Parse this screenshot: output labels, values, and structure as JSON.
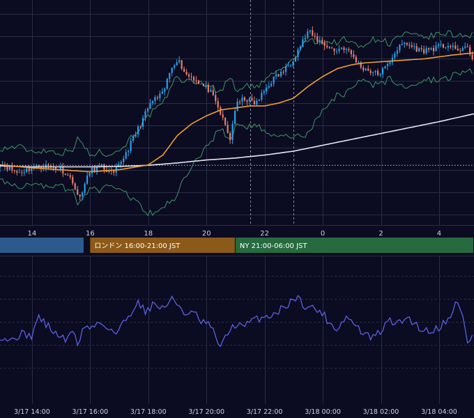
{
  "colors": {
    "background": "#0b0b22",
    "grid": "#2a2d45",
    "candle_up": "#2aa3e8",
    "candle_down": "#e8806a",
    "bollinger": "#3a9a62",
    "ma_fast": "#f0a030",
    "ma_slow": "#e8e8f0",
    "rsi": "#5a62e0",
    "tokyo": "#2c5a8c",
    "london": "#8c5a18",
    "ny": "#276a40"
  },
  "sessions": [
    {
      "label": "",
      "color": "#2c5a8c",
      "from_hour": 12.5,
      "to_hour": 15.8
    },
    {
      "label": "ロンドン 16:00-21:00 JST",
      "color": "#8c5a18",
      "from_hour": 16.0,
      "to_hour": 21.0
    },
    {
      "label": "NY 21:00-06:00 JST",
      "color": "#276a40",
      "from_hour": 21.0,
      "to_hour": 30.0
    }
  ],
  "chart_data": [
    {
      "type": "candlestick",
      "title": "",
      "x_range_hours": [
        12.9,
        29.2
      ],
      "x_tick_labels": [
        "14",
        "16",
        "18",
        "20",
        "22",
        "0",
        "2",
        "4"
      ],
      "x_tick_hours": [
        14,
        16,
        18,
        20,
        22,
        24,
        26,
        28
      ],
      "y_range": [
        0.0,
        1.0
      ],
      "grid": true,
      "reference_lines": [
        {
          "kind": "horizontal-dotted",
          "value": 0.258
        },
        {
          "kind": "vertical-dashed",
          "hour": 21.5
        },
        {
          "kind": "vertical-dashed",
          "hour": 23.0
        }
      ],
      "candles": {
        "count": 196,
        "start_hour": 12.9,
        "step_hours": 0.0833,
        "close_anchors": [
          [
            12.9,
            0.27
          ],
          [
            13.5,
            0.22
          ],
          [
            14.0,
            0.245
          ],
          [
            14.5,
            0.255
          ],
          [
            15.0,
            0.24
          ],
          [
            15.4,
            0.18
          ],
          [
            15.6,
            0.08
          ],
          [
            16.0,
            0.23
          ],
          [
            16.4,
            0.25
          ],
          [
            16.8,
            0.21
          ],
          [
            17.0,
            0.26
          ],
          [
            17.3,
            0.34
          ],
          [
            17.6,
            0.43
          ],
          [
            17.9,
            0.52
          ],
          [
            18.1,
            0.58
          ],
          [
            18.5,
            0.62
          ],
          [
            18.8,
            0.76
          ],
          [
            19.0,
            0.8
          ],
          [
            19.3,
            0.72
          ],
          [
            19.6,
            0.7
          ],
          [
            19.9,
            0.66
          ],
          [
            20.1,
            0.64
          ],
          [
            20.4,
            0.55
          ],
          [
            20.7,
            0.44
          ],
          [
            20.8,
            0.38
          ],
          [
            21.0,
            0.56
          ],
          [
            21.3,
            0.6
          ],
          [
            21.7,
            0.57
          ],
          [
            22.0,
            0.64
          ],
          [
            22.3,
            0.7
          ],
          [
            22.6,
            0.73
          ],
          [
            22.9,
            0.78
          ],
          [
            23.2,
            0.86
          ],
          [
            23.5,
            0.94
          ],
          [
            23.7,
            0.91
          ],
          [
            24.0,
            0.88
          ],
          [
            24.4,
            0.84
          ],
          [
            24.7,
            0.86
          ],
          [
            25.0,
            0.82
          ],
          [
            25.3,
            0.76
          ],
          [
            25.6,
            0.74
          ],
          [
            25.9,
            0.72
          ],
          [
            26.2,
            0.76
          ],
          [
            26.5,
            0.84
          ],
          [
            26.8,
            0.88
          ],
          [
            27.1,
            0.86
          ],
          [
            27.4,
            0.84
          ],
          [
            27.7,
            0.85
          ],
          [
            28.0,
            0.86
          ],
          [
            28.3,
            0.87
          ],
          [
            28.6,
            0.84
          ],
          [
            28.9,
            0.86
          ],
          [
            29.2,
            0.8
          ]
        ],
        "ma_fast_anchors": [
          [
            12.9,
            0.26
          ],
          [
            14.0,
            0.245
          ],
          [
            15.0,
            0.235
          ],
          [
            16.0,
            0.225
          ],
          [
            17.0,
            0.235
          ],
          [
            18.0,
            0.26
          ],
          [
            18.5,
            0.31
          ],
          [
            19.0,
            0.41
          ],
          [
            19.5,
            0.47
          ],
          [
            20.0,
            0.51
          ],
          [
            20.5,
            0.54
          ],
          [
            21.0,
            0.55
          ],
          [
            21.5,
            0.56
          ],
          [
            22.0,
            0.56
          ],
          [
            22.5,
            0.575
          ],
          [
            23.0,
            0.6
          ],
          [
            23.5,
            0.66
          ],
          [
            24.0,
            0.71
          ],
          [
            24.5,
            0.75
          ],
          [
            25.0,
            0.77
          ],
          [
            25.5,
            0.78
          ],
          [
            26.0,
            0.785
          ],
          [
            26.5,
            0.79
          ],
          [
            27.0,
            0.795
          ],
          [
            27.5,
            0.8
          ],
          [
            28.0,
            0.81
          ],
          [
            28.5,
            0.82
          ],
          [
            29.2,
            0.83
          ]
        ],
        "ma_slow_anchors": [
          [
            12.9,
            0.255
          ],
          [
            14.0,
            0.25
          ],
          [
            15.0,
            0.25
          ],
          [
            16.0,
            0.25
          ],
          [
            17.0,
            0.252
          ],
          [
            18.0,
            0.258
          ],
          [
            19.0,
            0.27
          ],
          [
            20.0,
            0.285
          ],
          [
            21.0,
            0.295
          ],
          [
            22.0,
            0.31
          ],
          [
            23.0,
            0.33
          ],
          [
            24.0,
            0.36
          ],
          [
            25.0,
            0.39
          ],
          [
            26.0,
            0.42
          ],
          [
            27.0,
            0.45
          ],
          [
            28.0,
            0.48
          ],
          [
            29.2,
            0.52
          ]
        ],
        "band_width": 0.085
      }
    },
    {
      "type": "line",
      "title": "",
      "name": "oscillator",
      "x_range_hours": [
        12.9,
        29.2
      ],
      "x_tick_labels": [
        "3/17 14:00",
        "3/17 16:00",
        "3/17 18:00",
        "3/17 20:00",
        "3/17 22:00",
        "3/18 00:00",
        "3/18 02:00",
        "3/18 04:00"
      ],
      "x_tick_hours": [
        14,
        16,
        18,
        20,
        22,
        24,
        26,
        28
      ],
      "y_range": [
        0,
        100
      ],
      "grid": true,
      "grid_levels": [
        30,
        50,
        70
      ],
      "anchors": [
        [
          12.9,
          38
        ],
        [
          13.3,
          34
        ],
        [
          13.6,
          40
        ],
        [
          14.0,
          38
        ],
        [
          14.2,
          55
        ],
        [
          14.5,
          48
        ],
        [
          14.8,
          40
        ],
        [
          15.0,
          38
        ],
        [
          15.2,
          33
        ],
        [
          15.4,
          44
        ],
        [
          15.6,
          30
        ],
        [
          15.8,
          48
        ],
        [
          16.0,
          44
        ],
        [
          16.3,
          50
        ],
        [
          16.6,
          46
        ],
        [
          16.9,
          40
        ],
        [
          17.1,
          48
        ],
        [
          17.4,
          58
        ],
        [
          17.6,
          68
        ],
        [
          17.9,
          60
        ],
        [
          18.2,
          66
        ],
        [
          18.5,
          62
        ],
        [
          18.8,
          70
        ],
        [
          19.1,
          64
        ],
        [
          19.3,
          56
        ],
        [
          19.6,
          58
        ],
        [
          19.8,
          50
        ],
        [
          20.1,
          48
        ],
        [
          20.3,
          38
        ],
        [
          20.5,
          28
        ],
        [
          20.8,
          44
        ],
        [
          21.0,
          48
        ],
        [
          21.3,
          46
        ],
        [
          21.6,
          52
        ],
        [
          21.9,
          54
        ],
        [
          22.2,
          56
        ],
        [
          22.5,
          60
        ],
        [
          22.8,
          66
        ],
        [
          23.1,
          72
        ],
        [
          23.4,
          64
        ],
        [
          23.7,
          62
        ],
        [
          24.0,
          58
        ],
        [
          24.2,
          50
        ],
        [
          24.5,
          44
        ],
        [
          24.8,
          55
        ],
        [
          25.1,
          48
        ],
        [
          25.4,
          40
        ],
        [
          25.7,
          36
        ],
        [
          26.0,
          42
        ],
        [
          26.3,
          52
        ],
        [
          26.6,
          48
        ],
        [
          26.9,
          55
        ],
        [
          27.1,
          50
        ],
        [
          27.4,
          44
        ],
        [
          27.7,
          42
        ],
        [
          28.0,
          46
        ],
        [
          28.3,
          52
        ],
        [
          28.6,
          68
        ],
        [
          28.8,
          56
        ],
        [
          29.0,
          30
        ],
        [
          29.2,
          44
        ]
      ]
    }
  ]
}
